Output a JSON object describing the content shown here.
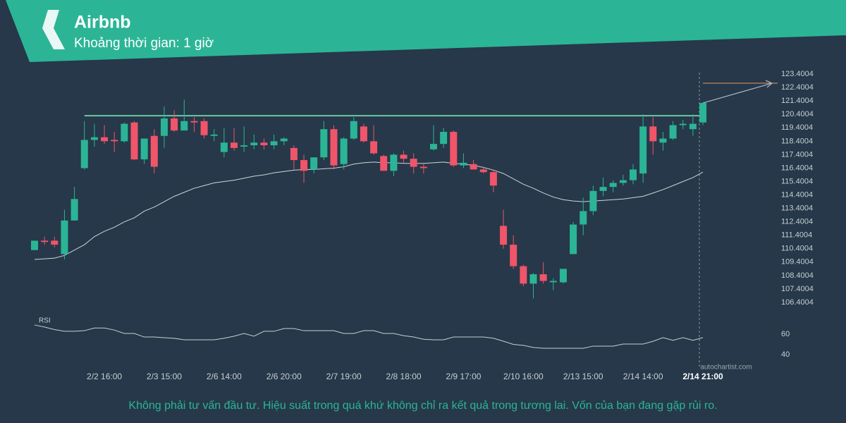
{
  "header": {
    "title": "Airbnb",
    "subtitle": "Khoảng thời gian: 1 giờ"
  },
  "watermark": "autochartist.com",
  "disclaimer": "Không phải tư vấn đầu tư. Hiệu suất trong quá khứ không chỉ ra kết quả trong tương lai. Vốn của bạn đang gặp rủi ro.",
  "chart_data": [
    {
      "type": "candlestick",
      "categories": [
        null,
        null,
        null,
        null,
        null,
        null,
        null,
        "2/2 16:00",
        null,
        null,
        null,
        null,
        null,
        "2/3 15:00",
        null,
        null,
        null,
        null,
        null,
        "2/6 14:00",
        null,
        null,
        null,
        null,
        null,
        "2/6 20:00",
        null,
        null,
        null,
        null,
        null,
        "2/7 19:00",
        null,
        null,
        null,
        null,
        null,
        "2/8 18:00",
        null,
        null,
        null,
        null,
        null,
        "2/9 17:00",
        null,
        null,
        null,
        null,
        null,
        "2/10 16:00",
        null,
        null,
        null,
        null,
        null,
        "2/13 15:00",
        null,
        null,
        null,
        null,
        null,
        "2/14 14:00",
        null,
        null,
        null,
        null,
        null,
        "2/14 21:00"
      ],
      "open": [
        110.3,
        111.0,
        111.0,
        110.0,
        112.5,
        116.4,
        118.5,
        118.7,
        118.5,
        118.4,
        119.8,
        117.05,
        118.8,
        118.8,
        120.1,
        119.2,
        119.9,
        119.9,
        118.8,
        117.6,
        118.3,
        118.0,
        118.1,
        118.3,
        118.1,
        118.4,
        117.9,
        117.0,
        116.3,
        117.2,
        119.3,
        116.7,
        118.6,
        119.5,
        118.4,
        117.3,
        116.2,
        117.4,
        117.1,
        116.5,
        117.8,
        118.2,
        119.1,
        116.6,
        116.7,
        116.3,
        116.1,
        112.1,
        110.7,
        109.1,
        107.8,
        108.5,
        107.9,
        107.9,
        110.0,
        112.2,
        113.2,
        114.7,
        115.0,
        115.3,
        115.5,
        116.0,
        119.5,
        118.3,
        118.6,
        119.6,
        119.3,
        119.8
      ],
      "high": [
        111.0,
        111.3,
        111.3,
        113.3,
        115.0,
        119.9,
        119.7,
        119.6,
        119.1,
        119.8,
        119.9,
        118.6,
        119.3,
        121.0,
        120.7,
        121.5,
        120.2,
        120.1,
        119.3,
        119.4,
        119.4,
        119.5,
        118.9,
        118.6,
        118.9,
        118.7,
        118.1,
        117.4,
        117.2,
        119.9,
        119.6,
        118.7,
        120.2,
        119.7,
        119.6,
        117.4,
        117.5,
        117.7,
        117.5,
        116.7,
        119.6,
        119.4,
        119.2,
        117.5,
        117.0,
        116.5,
        116.3,
        113.3,
        111.4,
        109.2,
        108.6,
        109.4,
        108.2,
        108.9,
        112.4,
        114.2,
        115.1,
        115.7,
        115.5,
        115.9,
        116.7,
        120.4,
        120.2,
        119.1,
        119.9,
        120.0,
        120.4,
        121.3
      ],
      "low": [
        110.3,
        110.7,
        110.5,
        109.6,
        112.5,
        116.3,
        118.0,
        118.2,
        117.6,
        118.3,
        117.0,
        116.7,
        116.0,
        117.9,
        119.1,
        119.2,
        119.1,
        118.6,
        118.4,
        117.2,
        117.7,
        117.6,
        117.8,
        117.8,
        117.8,
        118.1,
        116.3,
        115.3,
        116.0,
        117.0,
        116.3,
        116.3,
        118.5,
        118.3,
        117.4,
        116.2,
        115.8,
        116.8,
        116.0,
        116.0,
        117.7,
        117.9,
        116.5,
        116.4,
        116.3,
        116.0,
        114.6,
        110.4,
        108.9,
        107.6,
        106.7,
        107.8,
        107.3,
        107.8,
        110.0,
        111.4,
        112.9,
        114.3,
        114.6,
        115.1,
        115.2,
        115.3,
        117.4,
        117.7,
        118.5,
        119.3,
        118.8,
        119.6
      ],
      "close": [
        111.0,
        110.9,
        110.7,
        112.5,
        114.1,
        118.5,
        118.7,
        118.4,
        118.4,
        119.7,
        117.05,
        118.6,
        116.5,
        120.1,
        119.2,
        119.9,
        119.8,
        118.85,
        118.9,
        118.3,
        117.9,
        118.1,
        118.3,
        118.1,
        118.4,
        118.6,
        117.0,
        116.2,
        117.2,
        119.3,
        116.6,
        118.6,
        119.9,
        118.4,
        117.5,
        116.2,
        117.4,
        117.1,
        116.5,
        116.4,
        118.2,
        119.1,
        116.6,
        116.8,
        116.3,
        116.1,
        115.1,
        110.7,
        109.1,
        107.8,
        108.5,
        108.0,
        108.0,
        108.9,
        112.2,
        113.2,
        114.7,
        115.0,
        115.3,
        115.5,
        116.3,
        119.5,
        118.4,
        118.6,
        119.6,
        119.7,
        119.7,
        121.25
      ],
      "moving_average": [
        109.6,
        109.65,
        109.7,
        109.9,
        110.3,
        110.7,
        111.3,
        111.7,
        112.0,
        112.4,
        112.7,
        113.2,
        113.5,
        113.9,
        114.3,
        114.6,
        114.9,
        115.1,
        115.3,
        115.4,
        115.5,
        115.65,
        115.8,
        115.9,
        116.05,
        116.15,
        116.25,
        116.3,
        116.3,
        116.35,
        116.4,
        116.5,
        116.7,
        116.8,
        116.85,
        116.8,
        116.8,
        116.75,
        116.75,
        116.75,
        116.8,
        116.85,
        116.75,
        116.7,
        116.6,
        116.45,
        116.25,
        116.0,
        115.6,
        115.2,
        114.9,
        114.55,
        114.25,
        114.05,
        113.95,
        113.9,
        113.95,
        114.0,
        114.05,
        114.1,
        114.2,
        114.3,
        114.55,
        114.8,
        115.1,
        115.4,
        115.7,
        116.1
      ],
      "resistance": 120.3,
      "target": 122.72,
      "up_color": "#2bb596",
      "down_color": "#f0556a",
      "ylim": [
        105.56,
        123.93
      ],
      "yticks": [
        123.4004,
        122.4004,
        121.4004,
        120.4004,
        119.4004,
        118.4004,
        117.4004,
        116.4004,
        115.4004,
        114.4004,
        113.4004,
        112.4004,
        111.4004,
        110.4004,
        109.4004,
        108.4004,
        107.4004,
        106.4004
      ]
    },
    {
      "type": "line",
      "label": "RSI",
      "values": [
        69,
        67,
        64.5,
        62.8,
        62.8,
        63.4,
        66,
        66,
        64,
        60.7,
        60.7,
        57.2,
        57.2,
        56.5,
        55.9,
        54.5,
        54.5,
        54.5,
        54.5,
        56,
        58,
        60.7,
        58,
        62.8,
        62.8,
        65.5,
        65.5,
        63.4,
        63.4,
        63.4,
        63.4,
        60.7,
        60.7,
        63.4,
        63.4,
        60.7,
        60.7,
        58.5,
        57.2,
        55,
        54.5,
        54.5,
        57.2,
        57.2,
        57.2,
        57.2,
        56,
        53.1,
        50,
        49,
        47,
        46.2,
        46.2,
        46.2,
        46.2,
        46.2,
        48.3,
        48.3,
        48.3,
        50.3,
        50.3,
        50.3,
        53,
        56.6,
        54,
        56.6,
        54,
        56.6
      ],
      "color": "#c8ced3",
      "ylim": [
        31.7,
        76.55
      ],
      "yticks": [
        60,
        40
      ]
    }
  ]
}
